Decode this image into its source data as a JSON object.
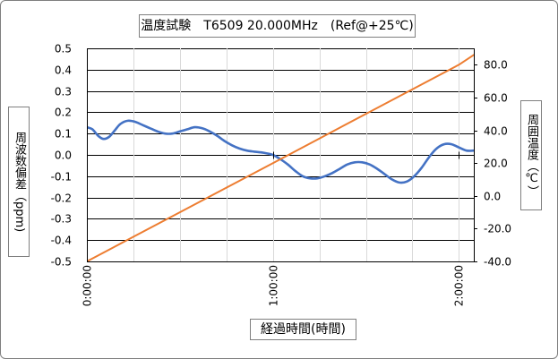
{
  "chart_data": {
    "type": "line",
    "title": "温度試験　T6509 20.000MHz　(Ref@+25℃)",
    "xlabel": "経過時間(時間)",
    "ylabel": "周波数偏差（ppm)",
    "y2label": "周囲温度（℃）",
    "xlim_hours": [
      0,
      2.08
    ],
    "ylim": [
      -0.5,
      0.5
    ],
    "y2lim": [
      -40,
      90
    ],
    "x_tick_labels": [
      "0:00:00",
      "1:00:00",
      "2:00:00"
    ],
    "x_tick_hours": [
      0,
      1,
      2
    ],
    "y_tick_labels": [
      "0.5",
      "0.4",
      "0.3",
      "0.2",
      "0.1",
      "0.0",
      "-0.1",
      "-0.2",
      "-0.3",
      "-0.4",
      "-0.5"
    ],
    "y_ticks": [
      0.5,
      0.4,
      0.3,
      0.2,
      0.1,
      0.0,
      -0.1,
      -0.2,
      -0.3,
      -0.4,
      -0.5
    ],
    "y2_tick_labels": [
      "80.0",
      "60.0",
      "40.0",
      "20.0",
      "0.0",
      "-20.0",
      "-40.0"
    ],
    "y2_ticks": [
      80,
      60,
      40,
      20,
      0,
      -20,
      -40
    ],
    "grid": true,
    "colors": {
      "frequency": "#4472c4",
      "temperature": "#ed7d31",
      "grid": "#000000"
    },
    "series": [
      {
        "key": "frequency",
        "axis": "left",
        "x_hours": [
          0,
          0.03,
          0.06,
          0.09,
          0.12,
          0.15,
          0.18,
          0.22,
          0.26,
          0.3,
          0.34,
          0.38,
          0.42,
          0.46,
          0.5,
          0.54,
          0.58,
          0.62,
          0.66,
          0.7,
          0.74,
          0.78,
          0.82,
          0.86,
          0.9,
          0.95,
          1.0,
          1.04,
          1.08,
          1.12,
          1.16,
          1.2,
          1.24,
          1.28,
          1.32,
          1.36,
          1.4,
          1.44,
          1.48,
          1.52,
          1.56,
          1.6,
          1.64,
          1.68,
          1.72,
          1.76,
          1.8,
          1.84,
          1.88,
          1.92,
          1.96,
          2.0,
          2.04,
          2.08
        ],
        "values": [
          0.13,
          0.12,
          0.09,
          0.075,
          0.085,
          0.115,
          0.145,
          0.16,
          0.155,
          0.14,
          0.125,
          0.11,
          0.1,
          0.1,
          0.11,
          0.12,
          0.13,
          0.125,
          0.11,
          0.09,
          0.065,
          0.045,
          0.03,
          0.02,
          0.015,
          0.01,
          0.0,
          -0.02,
          -0.045,
          -0.075,
          -0.1,
          -0.11,
          -0.11,
          -0.1,
          -0.085,
          -0.065,
          -0.045,
          -0.035,
          -0.035,
          -0.045,
          -0.065,
          -0.09,
          -0.115,
          -0.13,
          -0.125,
          -0.1,
          -0.06,
          -0.01,
          0.03,
          0.05,
          0.05,
          0.035,
          0.02,
          0.02
        ]
      },
      {
        "key": "temperature",
        "axis": "right",
        "x_hours": [
          0,
          0.25,
          0.5,
          0.75,
          1.0,
          1.25,
          1.5,
          1.75,
          2.0,
          2.08
        ],
        "values": [
          -40,
          -25,
          -10,
          5,
          20,
          35,
          50,
          65,
          80,
          86
        ]
      }
    ]
  }
}
